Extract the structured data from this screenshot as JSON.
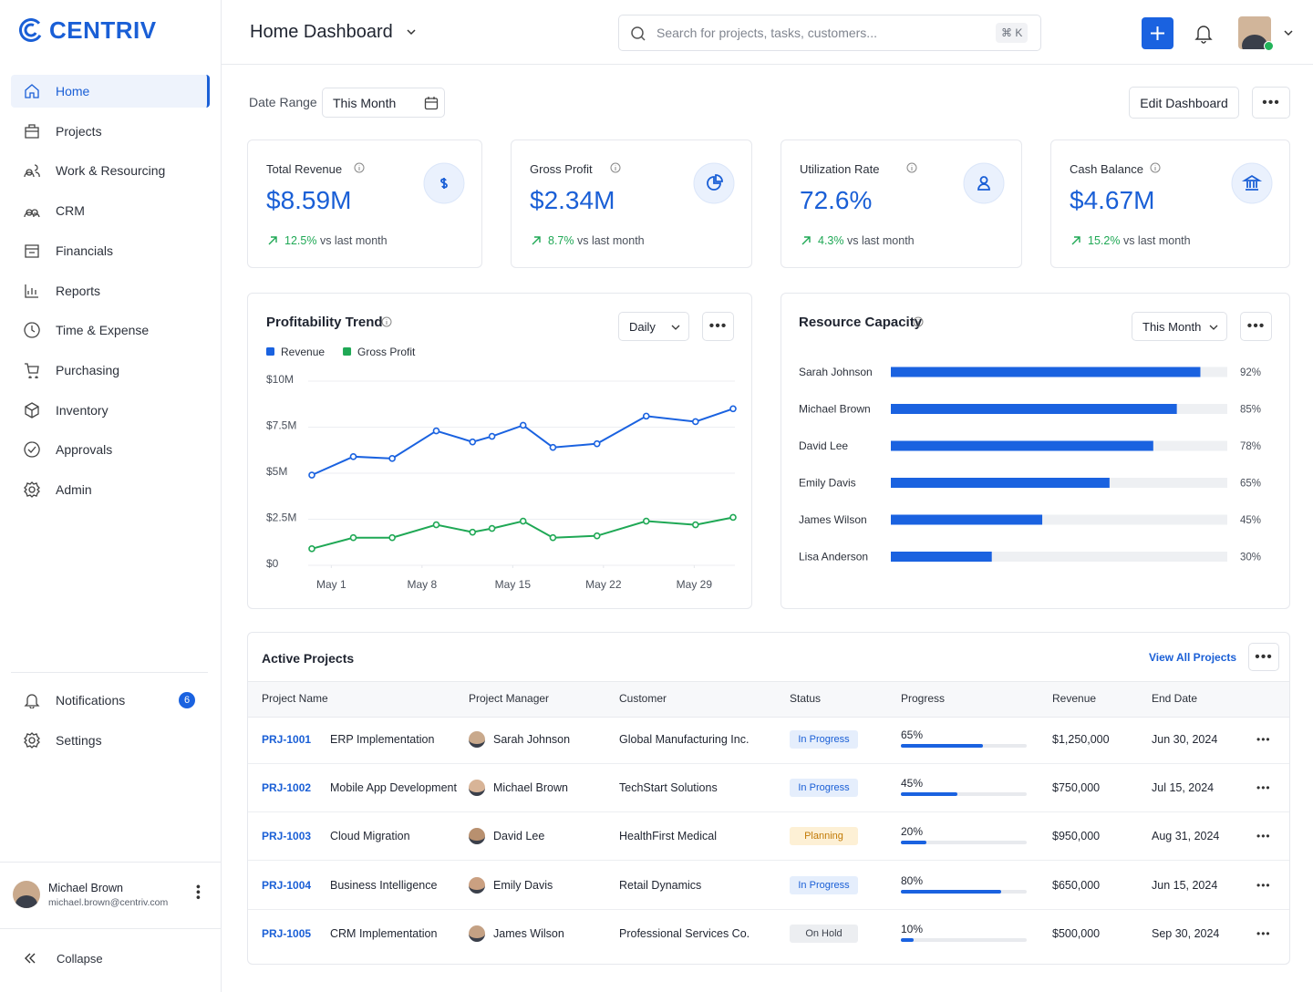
{
  "brand": "CENTRIV",
  "sidebar": {
    "nav": [
      "Home",
      "Projects",
      "Work & Resourcing",
      "CRM",
      "Financials",
      "Reports",
      "Time & Expense",
      "Purchasing",
      "Inventory",
      "Approvals",
      "Admin"
    ],
    "active": 0,
    "bottom": [
      {
        "label": "Notifications",
        "badge": 6
      },
      {
        "label": "Settings"
      }
    ],
    "user": {
      "name": "Michael Brown",
      "email": "michael.brown@centriv.com"
    },
    "collapse": "Collapse"
  },
  "header": {
    "title": "Home Dashboard",
    "search_placeholder": "Search for projects, tasks, customers...",
    "shortcut": "⌘ K"
  },
  "toolbar": {
    "date_range_label": "Date Range",
    "date_range": "This Month",
    "edit": "Edit Dashboard"
  },
  "kpis": [
    {
      "label": "Total Revenue",
      "value": "$8.59M",
      "change": "12.5%",
      "change_suffix": "vs last month"
    },
    {
      "label": "Gross Profit",
      "value": "$2.34M",
      "change": "8.7%",
      "change_suffix": "vs last month"
    },
    {
      "label": "Utilization Rate",
      "value": "72.6%",
      "change": "4.3%",
      "change_suffix": "vs last month"
    },
    {
      "label": "Cash Balance",
      "value": "$4.67M",
      "change": "15.2%",
      "change_suffix": "vs last month"
    }
  ],
  "chart_data": [
    {
      "type": "line",
      "title": "Profitability Trend",
      "period": "Daily",
      "x": [
        -0.5,
        2.7,
        5.7,
        9.1,
        11.9,
        13.4,
        15.8,
        18.1,
        21.5,
        25.3,
        29.1,
        32
      ],
      "xlim": [
        -0.5,
        32
      ],
      "xticks": [
        {
          "value": 1,
          "label": "May 1"
        },
        {
          "value": 8,
          "label": "May 8"
        },
        {
          "value": 15,
          "label": "May 15"
        },
        {
          "value": 22,
          "label": "May 22"
        },
        {
          "value": 29,
          "label": "May 29"
        }
      ],
      "ylim": [
        0,
        10
      ],
      "yticks": [
        {
          "value": 0,
          "label": "$0"
        },
        {
          "value": 2.5,
          "label": "$2.5M"
        },
        {
          "value": 5,
          "label": "$5M"
        },
        {
          "value": 7.5,
          "label": "$7.5M"
        },
        {
          "value": 10,
          "label": "$10M"
        }
      ],
      "grid": true,
      "series": [
        {
          "name": "Revenue",
          "color": "#1a62e0",
          "values": [
            4.9,
            5.9,
            5.8,
            7.3,
            6.7,
            7.0,
            7.6,
            6.4,
            6.6,
            8.1,
            7.8,
            8.5
          ]
        },
        {
          "name": "Gross Profit",
          "color": "#1fa855",
          "values": [
            0.9,
            1.5,
            1.5,
            2.2,
            1.8,
            2.0,
            2.4,
            1.5,
            1.6,
            2.4,
            2.2,
            2.6
          ]
        }
      ]
    },
    {
      "type": "hbar",
      "title": "Resource Capacity",
      "period": "This Month",
      "categories": [
        "Sarah Johnson",
        "Michael Brown",
        "David Lee",
        "Emily Davis",
        "James Wilson",
        "Lisa Anderson"
      ],
      "values": [
        92,
        85,
        78,
        65,
        45,
        30
      ],
      "value_labels": [
        "92%",
        "85%",
        "78%",
        "65%",
        "45%",
        "30%"
      ],
      "xlim": [
        0,
        100
      ],
      "color": "#1a62e0"
    }
  ],
  "table": {
    "title": "Active Projects",
    "link": "View All Projects",
    "columns": [
      "Project Name",
      "Project Manager",
      "Customer",
      "Status",
      "Progress",
      "Revenue",
      "End Date"
    ],
    "rows": [
      {
        "id": "PRJ-1001",
        "name": "ERP Implementation",
        "manager": "Sarah Johnson",
        "customer": "Global Manufacturing Inc.",
        "status": "In Progress",
        "status_tone": "blue",
        "progress": 65,
        "progress_label": "65%",
        "revenue": "$1,250,000",
        "end": "Jun 30, 2024"
      },
      {
        "id": "PRJ-1002",
        "name": "Mobile App Development",
        "manager": "Michael Brown",
        "customer": "TechStart Solutions",
        "status": "In Progress",
        "status_tone": "blue",
        "progress": 45,
        "progress_label": "45%",
        "revenue": "$750,000",
        "end": "Jul 15, 2024"
      },
      {
        "id": "PRJ-1003",
        "name": "Cloud Migration",
        "manager": "David Lee",
        "customer": "HealthFirst Medical",
        "status": "Planning",
        "status_tone": "amber",
        "progress": 20,
        "progress_label": "20%",
        "revenue": "$950,000",
        "end": "Aug 31, 2024"
      },
      {
        "id": "PRJ-1004",
        "name": "Business Intelligence",
        "manager": "Emily Davis",
        "customer": "Retail Dynamics",
        "status": "In Progress",
        "status_tone": "blue",
        "progress": 80,
        "progress_label": "80%",
        "revenue": "$650,000",
        "end": "Jun 15, 2024"
      },
      {
        "id": "PRJ-1005",
        "name": "CRM Implementation",
        "manager": "James Wilson",
        "customer": "Professional Services Co.",
        "status": "On Hold",
        "status_tone": "gray",
        "progress": 10,
        "progress_label": "10%",
        "revenue": "$500,000",
        "end": "Sep 30, 2024"
      }
    ]
  }
}
